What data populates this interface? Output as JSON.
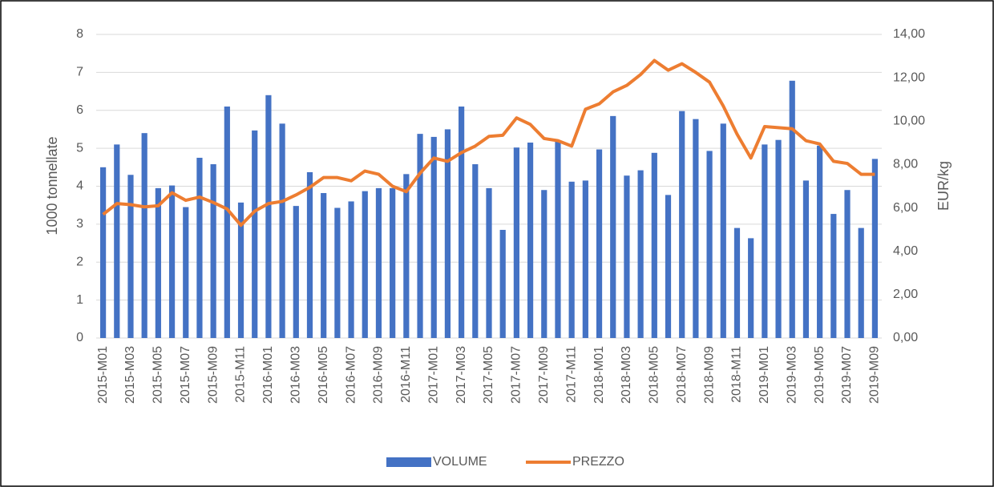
{
  "chart_data": {
    "type": "bar_line",
    "categories": [
      "2015-M01",
      null,
      "2015-M03",
      null,
      "2015-M05",
      null,
      "2015-M07",
      null,
      "2015-M09",
      null,
      "2015-M11",
      null,
      "2016-M01",
      null,
      "2016-M03",
      null,
      "2016-M05",
      null,
      "2016-M07",
      null,
      "2016-M09",
      null,
      "2016-M11",
      null,
      "2017-M01",
      null,
      "2017-M03",
      null,
      "2017-M05",
      null,
      "2017-M07",
      null,
      "2017-M09",
      null,
      "2017-M11",
      null,
      "2018-M01",
      null,
      "2018-M03",
      null,
      "2018-M05",
      null,
      "2018-M07",
      null,
      "2018-M09",
      null,
      "2018-M11",
      null,
      "2019-M01",
      null,
      "2019-M03",
      null,
      "2019-M05",
      null,
      "2019-M07",
      null,
      "2019-M09"
    ],
    "series": [
      {
        "name": "VOLUME",
        "color": "#4472c4",
        "kind": "bar",
        "values": [
          4.5,
          5.1,
          4.3,
          5.4,
          3.95,
          4.02,
          3.45,
          4.75,
          4.58,
          6.1,
          3.57,
          5.47,
          6.4,
          5.65,
          3.48,
          4.37,
          3.82,
          3.43,
          3.6,
          3.87,
          3.95,
          3.95,
          4.32,
          5.38,
          5.3,
          5.5,
          6.1,
          4.58,
          3.95,
          2.85,
          5.02,
          5.15,
          3.9,
          5.2,
          4.12,
          4.15,
          4.97,
          5.85,
          4.28,
          4.42,
          4.88,
          3.77,
          5.98,
          5.77,
          4.93,
          5.65,
          2.9,
          2.63,
          5.1,
          5.22,
          6.78,
          4.15,
          5.07,
          3.27,
          3.9,
          2.9,
          4.72
        ]
      },
      {
        "name": "PREZZO",
        "color": "#ed7d31",
        "kind": "line",
        "axis": "y2",
        "values": [
          5.7,
          6.2,
          6.15,
          6.05,
          6.1,
          6.7,
          6.35,
          6.5,
          6.25,
          5.95,
          5.2,
          5.85,
          6.2,
          6.3,
          6.6,
          6.95,
          7.4,
          7.4,
          7.25,
          7.7,
          7.55,
          7.0,
          6.75,
          7.6,
          8.3,
          8.15,
          8.55,
          8.85,
          9.3,
          9.35,
          10.15,
          9.85,
          9.2,
          9.1,
          8.85,
          10.55,
          10.8,
          11.35,
          11.65,
          12.15,
          12.8,
          12.35,
          12.65,
          12.25,
          11.8,
          10.7,
          9.4,
          8.3,
          9.75,
          9.7,
          9.65,
          9.1,
          8.95,
          8.15,
          8.05,
          7.55,
          7.55
        ]
      }
    ],
    "ylabel": "1000 tonnellate",
    "y2label": "EUR/kg",
    "ylim": [
      0,
      8
    ],
    "yticks": [
      0,
      1,
      2,
      3,
      4,
      5,
      6,
      7,
      8
    ],
    "y2lim": [
      0,
      14
    ],
    "y2ticks": [
      {
        "value": 0,
        "label": "0,00"
      },
      {
        "value": 2,
        "label": "2,00"
      },
      {
        "value": 4,
        "label": "4,00"
      },
      {
        "value": 6,
        "label": "6,00"
      },
      {
        "value": 8,
        "label": "8,00"
      },
      {
        "value": 10,
        "label": "10,00"
      },
      {
        "value": 12,
        "label": "12,00"
      },
      {
        "value": 14,
        "label": "14,00"
      }
    ],
    "grid": true,
    "legend": "bottom"
  }
}
